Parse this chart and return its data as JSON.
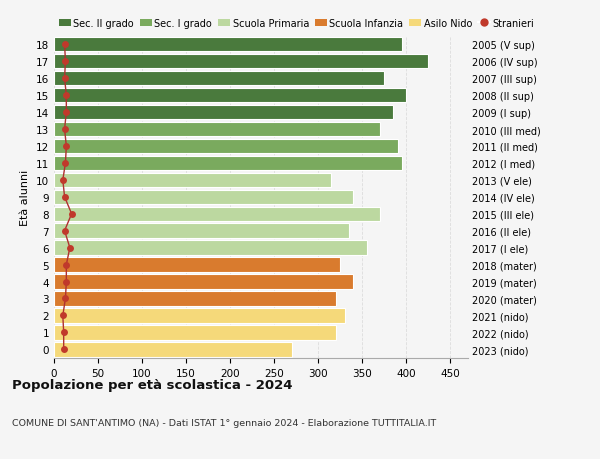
{
  "ages": [
    18,
    17,
    16,
    15,
    14,
    13,
    12,
    11,
    10,
    9,
    8,
    7,
    6,
    5,
    4,
    3,
    2,
    1,
    0
  ],
  "bar_values": [
    395,
    425,
    375,
    400,
    385,
    370,
    390,
    395,
    315,
    340,
    370,
    335,
    355,
    325,
    340,
    320,
    330,
    320,
    270
  ],
  "stranieri_values": [
    12,
    13,
    12,
    14,
    14,
    12,
    14,
    13,
    10,
    12,
    20,
    12,
    18,
    14,
    14,
    13,
    10,
    11,
    11
  ],
  "right_labels": [
    "2005 (V sup)",
    "2006 (IV sup)",
    "2007 (III sup)",
    "2008 (II sup)",
    "2009 (I sup)",
    "2010 (III med)",
    "2011 (II med)",
    "2012 (I med)",
    "2013 (V ele)",
    "2014 (IV ele)",
    "2015 (III ele)",
    "2016 (II ele)",
    "2017 (I ele)",
    "2018 (mater)",
    "2019 (mater)",
    "2020 (mater)",
    "2021 (nido)",
    "2022 (nido)",
    "2023 (nido)"
  ],
  "bar_colors": [
    "#4a7a3d",
    "#4a7a3d",
    "#4a7a3d",
    "#4a7a3d",
    "#4a7a3d",
    "#7aaa5e",
    "#7aaa5e",
    "#7aaa5e",
    "#bcd8a0",
    "#bcd8a0",
    "#bcd8a0",
    "#bcd8a0",
    "#bcd8a0",
    "#d97b2e",
    "#d97b2e",
    "#d97b2e",
    "#f5d97a",
    "#f5d97a",
    "#f5d97a"
  ],
  "legend_labels": [
    "Sec. II grado",
    "Sec. I grado",
    "Scuola Primaria",
    "Scuola Infanzia",
    "Asilo Nido",
    "Stranieri"
  ],
  "legend_colors": [
    "#4a7a3d",
    "#7aaa5e",
    "#bcd8a0",
    "#d97b2e",
    "#f5d97a",
    "#c0392b"
  ],
  "stranieri_color": "#c0392b",
  "stranieri_line_color": "#b03030",
  "ylabel_left": "Età alunni",
  "title": "Popolazione per età scolastica - 2024",
  "subtitle": "COMUNE DI SANT'ANTIMO (NA) - Dati ISTAT 1° gennaio 2024 - Elaborazione TUTTITALIA.IT",
  "xlim": [
    0,
    470
  ],
  "background_color": "#f5f5f5",
  "grid_color": "#dddddd"
}
